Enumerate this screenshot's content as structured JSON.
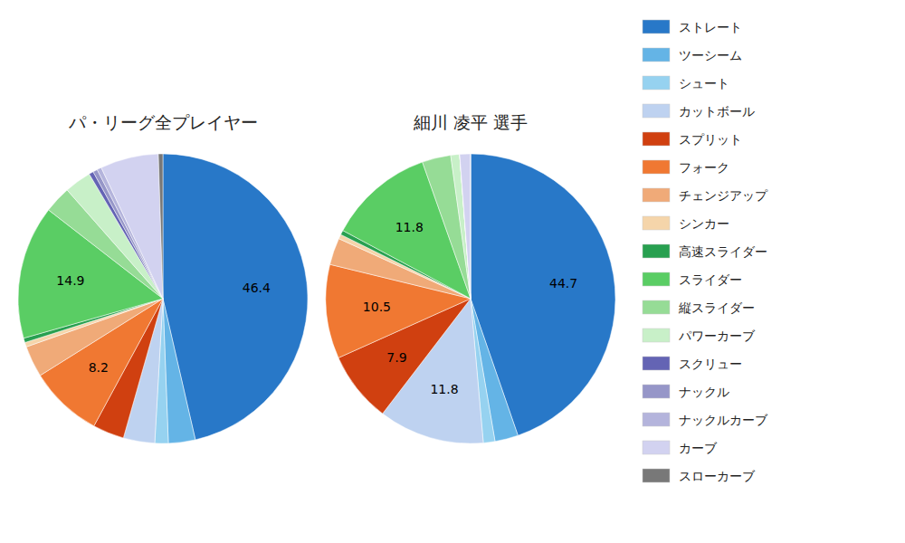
{
  "chart_data": [
    {
      "type": "pie",
      "title": "パ・リーグ全プレイヤー",
      "categories": [
        "ストレート",
        "ツーシーム",
        "シュート",
        "カットボール",
        "スプリット",
        "フォーク",
        "チェンジアップ",
        "シンカー",
        "高速スライダー",
        "スライダー",
        "縦スライダー",
        "パワーカーブ",
        "スクリュー",
        "ナックル",
        "ナックルカーブ",
        "カーブ",
        "スローカーブ"
      ],
      "colors": [
        "#2878c8",
        "#64b4e6",
        "#96d2f0",
        "#bed2f0",
        "#d04010",
        "#f07832",
        "#f0aa78",
        "#f5d5aa",
        "#28a050",
        "#5acd64",
        "#96dc96",
        "#c8f0c8",
        "#6464b4",
        "#9696c8",
        "#b4b4dc",
        "#d2d2f0",
        "#787878"
      ],
      "values": [
        46.4,
        3.0,
        1.5,
        3.5,
        3.5,
        8.2,
        3.5,
        0.5,
        0.5,
        14.9,
        3.0,
        3.0,
        0.5,
        0.5,
        0.5,
        6.5,
        0.5
      ],
      "value_labels": [
        "46.4",
        null,
        null,
        null,
        null,
        "8.2",
        null,
        null,
        null,
        "14.9",
        null,
        null,
        null,
        null,
        null,
        null,
        null
      ],
      "legend": "right"
    },
    {
      "type": "pie",
      "title": "細川 凌平  選手",
      "categories": [
        "ストレート",
        "ツーシーム",
        "シュート",
        "カットボール",
        "スプリット",
        "フォーク",
        "チェンジアップ",
        "シンカー",
        "高速スライダー",
        "スライダー",
        "縦スライダー",
        "パワーカーブ",
        "スクリュー",
        "ナックル",
        "ナックルカーブ",
        "カーブ",
        "スローカーブ"
      ],
      "colors": [
        "#2878c8",
        "#64b4e6",
        "#96d2f0",
        "#bed2f0",
        "#d04010",
        "#f07832",
        "#f0aa78",
        "#f5d5aa",
        "#28a050",
        "#5acd64",
        "#96dc96",
        "#c8f0c8",
        "#6464b4",
        "#9696c8",
        "#b4b4dc",
        "#d2d2f0",
        "#787878"
      ],
      "values": [
        44.7,
        2.6,
        1.3,
        11.8,
        7.9,
        10.5,
        3.0,
        0.5,
        0.5,
        11.8,
        3.2,
        1.0,
        0.0,
        0.0,
        0.0,
        1.2,
        0.0
      ],
      "value_labels": [
        "44.7",
        null,
        null,
        "11.8",
        "7.9",
        "10.5",
        null,
        null,
        null,
        "11.8",
        null,
        null,
        null,
        null,
        null,
        null,
        null
      ]
    }
  ]
}
